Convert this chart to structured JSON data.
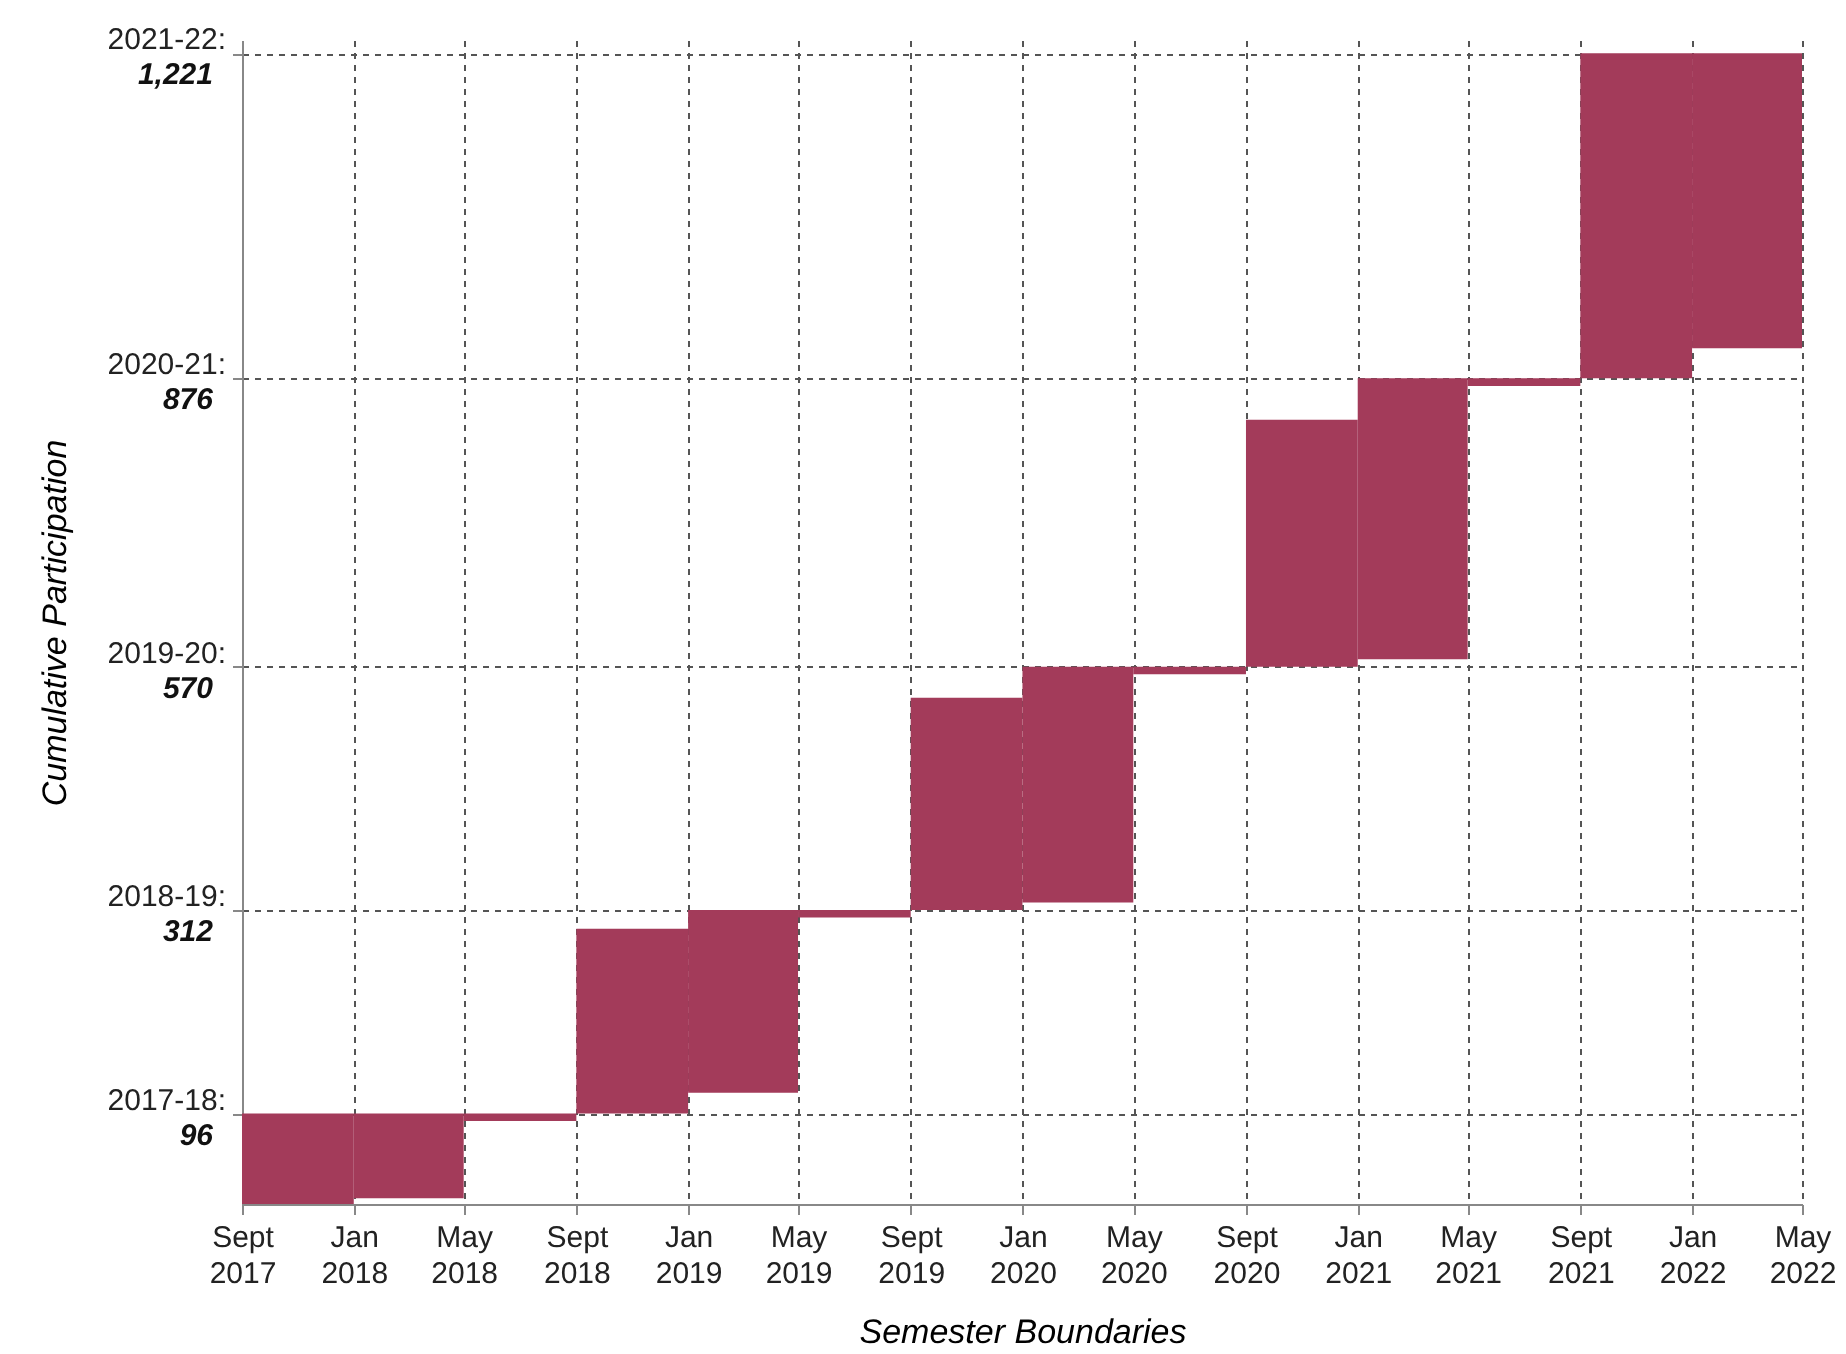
{
  "chart_data": {
    "type": "bar",
    "xlabel": "Semester Boundaries",
    "ylabel": "Cumulative Participation",
    "x": [
      "2017-11",
      "2018-03",
      "2018-07",
      "2018-11",
      "2019-03",
      "2019-07",
      "2019-11",
      "2020-03",
      "2020-07",
      "2020-11",
      "2021-03",
      "2021-07",
      "2021-11",
      "2022-03"
    ],
    "base": [
      0,
      6,
      88,
      96,
      118,
      304,
      312,
      320,
      562,
      570,
      578,
      868,
      876,
      908
    ],
    "values": [
      96,
      90,
      8,
      196,
      194,
      8,
      225,
      250,
      8,
      262,
      298,
      8,
      345,
      313
    ],
    "color": "#a33b5a",
    "xlim": [
      "2017-09",
      "2022-05"
    ],
    "xticks": [
      {
        "value": "2017-09",
        "label": "Sept 2017"
      },
      {
        "value": "2018-01",
        "label": "Jan 2018"
      },
      {
        "value": "2018-05",
        "label": "May 2018"
      },
      {
        "value": "2018-09",
        "label": "Sept 2018"
      },
      {
        "value": "2019-01",
        "label": "Jan 2019"
      },
      {
        "value": "2019-05",
        "label": "May 2019"
      },
      {
        "value": "2019-09",
        "label": "Sept 2019"
      },
      {
        "value": "2020-01",
        "label": "Jan 2020"
      },
      {
        "value": "2020-05",
        "label": "May 2020"
      },
      {
        "value": "2020-09",
        "label": "Sept 2020"
      },
      {
        "value": "2021-01",
        "label": "Jan 2021"
      },
      {
        "value": "2021-05",
        "label": "May 2021"
      },
      {
        "value": "2021-09",
        "label": "Sept 2021"
      },
      {
        "value": "2022-01",
        "label": "Jan 2022"
      },
      {
        "value": "2022-05",
        "label": "May 2022"
      }
    ],
    "ylim": [
      0,
      1235
    ],
    "yticks": [
      96,
      312,
      570,
      876,
      {
        "value": 1221,
        "label": "1,221"
      }
    ],
    "annotations": [
      "2017-18:",
      "2018-19:",
      "2019-20:",
      "2020-21:",
      "2021-22:"
    ],
    "grid": true
  }
}
